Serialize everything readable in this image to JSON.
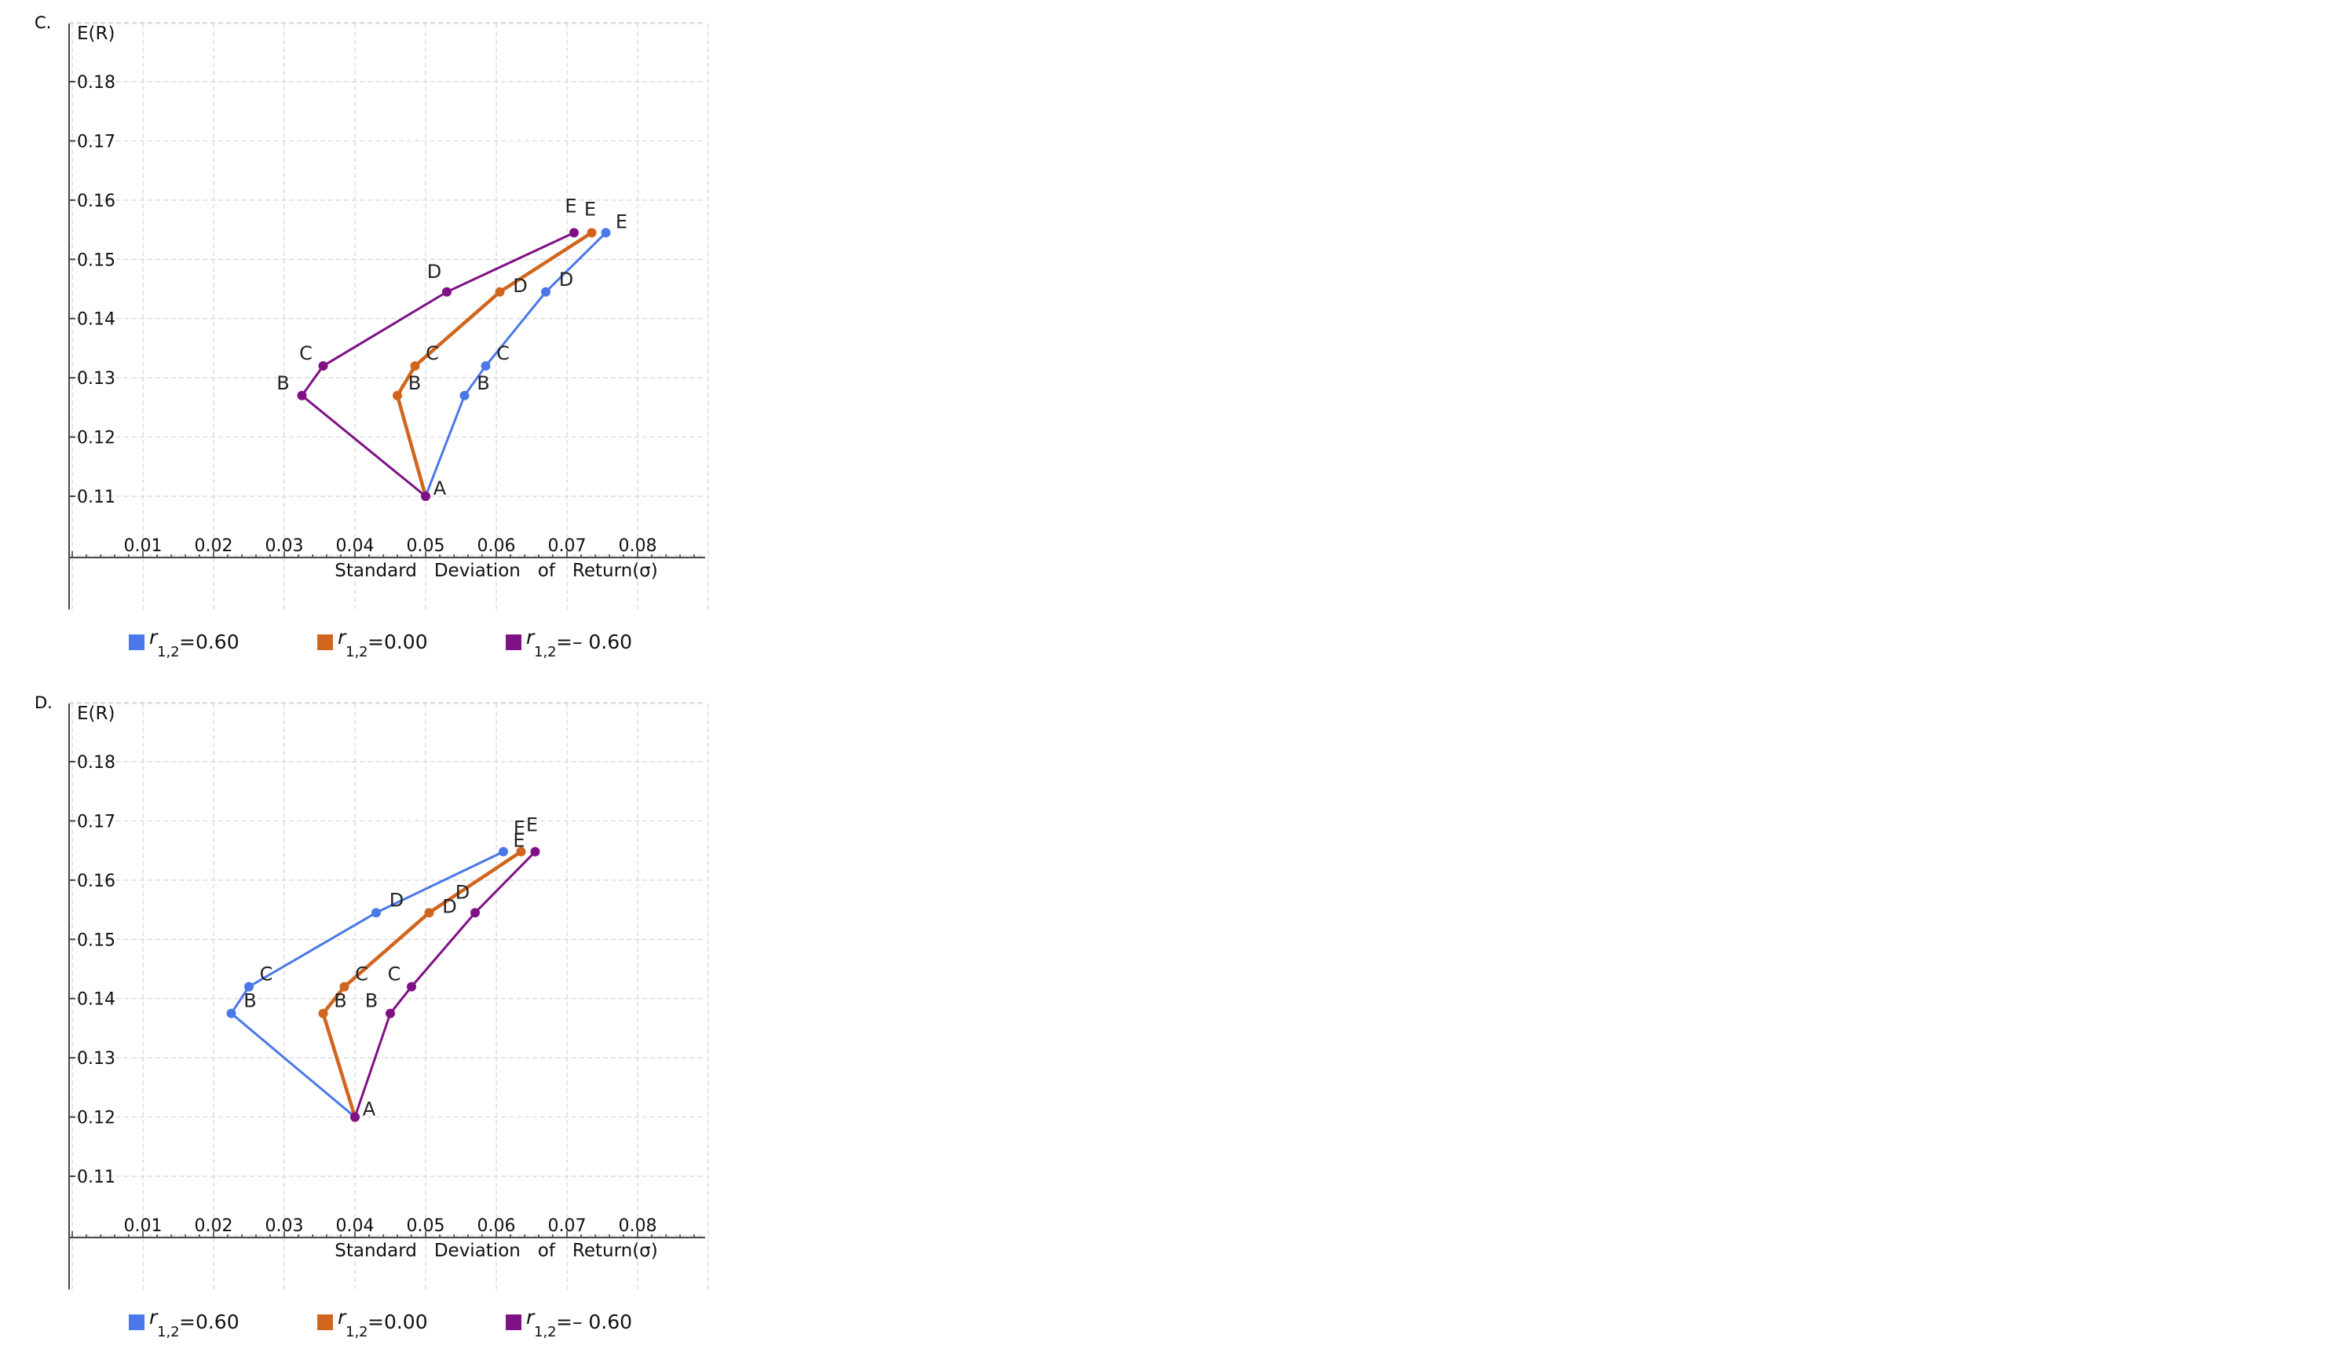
{
  "chart_data": [
    {
      "panel": "C.",
      "type": "line",
      "ylabel": "E(R)",
      "xlabel": "Standard   Deviation   of   Return(σ)",
      "xlim": [
        0,
        0.09
      ],
      "ylim": [
        0.1,
        0.19
      ],
      "x_ticks": [
        "0.01",
        "0.02",
        "0.03",
        "0.04",
        "0.05",
        "0.06",
        "0.07",
        "0.08"
      ],
      "y_ticks": [
        "0.11",
        "0.12",
        "0.13",
        "0.14",
        "0.15",
        "0.16",
        "0.17",
        "0.18"
      ],
      "grid": true,
      "legend_position": "bottom",
      "series": [
        {
          "name": "r1,2=0.60",
          "legend_sym": "r",
          "legend_sub": "1,2",
          "legend_val": "=0.60",
          "color": "#4a78e8",
          "points": [
            {
              "label": "A",
              "x": 0.05,
              "y": 0.11
            },
            {
              "label": "B",
              "x": 0.0555,
              "y": 0.127
            },
            {
              "label": "C",
              "x": 0.0585,
              "y": 0.132
            },
            {
              "label": "D",
              "x": 0.067,
              "y": 0.1445
            },
            {
              "label": "E",
              "x": 0.0755,
              "y": 0.1545
            }
          ]
        },
        {
          "name": "r1,2=0.00",
          "legend_sym": "r",
          "legend_sub": "1,2",
          "legend_val": "=0.00",
          "color": "#d0661e",
          "points": [
            {
              "label": "A",
              "x": 0.05,
              "y": 0.11
            },
            {
              "label": "B",
              "x": 0.046,
              "y": 0.127
            },
            {
              "label": "C",
              "x": 0.0485,
              "y": 0.132
            },
            {
              "label": "D",
              "x": 0.0605,
              "y": 0.1445
            },
            {
              "label": "E",
              "x": 0.0735,
              "y": 0.1545
            }
          ]
        },
        {
          "name": "r1,2=- 0.60",
          "legend_sym": "r",
          "legend_sub": "1,2",
          "legend_val": "=– 0.60",
          "color": "#7f1184",
          "points": [
            {
              "label": "A",
              "x": 0.05,
              "y": 0.11
            },
            {
              "label": "B",
              "x": 0.0325,
              "y": 0.127
            },
            {
              "label": "C",
              "x": 0.0355,
              "y": 0.132
            },
            {
              "label": "D",
              "x": 0.053,
              "y": 0.1445
            },
            {
              "label": "E",
              "x": 0.071,
              "y": 0.1545
            }
          ]
        }
      ]
    },
    {
      "panel": "D.",
      "type": "line",
      "ylabel": "E(R)",
      "xlabel": "Standard   Deviation   of   Return(σ)",
      "xlim": [
        0,
        0.09
      ],
      "ylim": [
        0.1,
        0.19
      ],
      "x_ticks": [
        "0.01",
        "0.02",
        "0.03",
        "0.04",
        "0.05",
        "0.06",
        "0.07",
        "0.08"
      ],
      "y_ticks": [
        "0.11",
        "0.12",
        "0.13",
        "0.14",
        "0.15",
        "0.16",
        "0.17",
        "0.18"
      ],
      "grid": true,
      "legend_position": "bottom",
      "series": [
        {
          "name": "r1,2=0.60",
          "legend_sym": "r",
          "legend_sub": "1,2",
          "legend_val": "=0.60",
          "color": "#4a78e8",
          "points": [
            {
              "label": "A",
              "x": 0.04,
              "y": 0.12
            },
            {
              "label": "B",
              "x": 0.0225,
              "y": 0.1375
            },
            {
              "label": "C",
              "x": 0.025,
              "y": 0.142
            },
            {
              "label": "D",
              "x": 0.043,
              "y": 0.1545
            },
            {
              "label": "E",
              "x": 0.061,
              "y": 0.1648
            }
          ]
        },
        {
          "name": "r1,2=0.00",
          "legend_sym": "r",
          "legend_sub": "1,2",
          "legend_val": "=0.00",
          "color": "#d0661e",
          "points": [
            {
              "label": "A",
              "x": 0.04,
              "y": 0.12
            },
            {
              "label": "B",
              "x": 0.0355,
              "y": 0.1375
            },
            {
              "label": "C",
              "x": 0.0385,
              "y": 0.142
            },
            {
              "label": "D",
              "x": 0.0505,
              "y": 0.1545
            },
            {
              "label": "E",
              "x": 0.0635,
              "y": 0.1648
            }
          ]
        },
        {
          "name": "r1,2=- 0.60",
          "legend_sym": "r",
          "legend_sub": "1,2",
          "legend_val": "=– 0.60",
          "color": "#7f1184",
          "points": [
            {
              "label": "A",
              "x": 0.04,
              "y": 0.12
            },
            {
              "label": "B",
              "x": 0.045,
              "y": 0.1375
            },
            {
              "label": "C",
              "x": 0.048,
              "y": 0.142
            },
            {
              "label": "D",
              "x": 0.057,
              "y": 0.1545
            },
            {
              "label": "E",
              "x": 0.0655,
              "y": 0.1648
            }
          ]
        }
      ]
    }
  ]
}
